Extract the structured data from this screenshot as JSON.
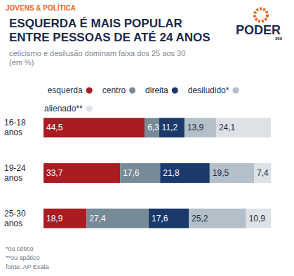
{
  "chart_data": {
    "type": "bar",
    "kicker": "JOVENS & POLÍTICA",
    "title": "ESQUERDA É MAIS POPULAR\nENTRE PESSOAS DE ATÉ 24 ANOS",
    "subtitle": "ceticismo e desilusão dominam faixa dos 25 aos 30\n(em %)",
    "logo": {
      "text": "PODER",
      "sub": "360"
    },
    "orientation": "horizontal",
    "stacked": true,
    "data_labels": true,
    "tick_labels": "y",
    "grid": false,
    "legend": "top",
    "categories": [
      "16-18 anos",
      "19-24 anos",
      "25-30 anos"
    ],
    "xlim": [
      0,
      100
    ],
    "series": [
      {
        "name": "esquerda",
        "color": "#a81c22",
        "values": [
          44.5,
          33.7,
          18.9
        ],
        "value_labels": [
          "44,5",
          "33,7",
          "18,9"
        ]
      },
      {
        "name": "centro",
        "color": "#778a98",
        "values": [
          6.3,
          17.6,
          27.4
        ],
        "value_labels": [
          "6,3",
          "17,6",
          "27,4"
        ]
      },
      {
        "name": "direita",
        "color": "#1b3a6b",
        "values": [
          11.2,
          21.8,
          17.6
        ],
        "value_labels": [
          "11,2",
          "21,8",
          "17,6"
        ]
      },
      {
        "name": "desiludido*",
        "color": "#b3bfc9",
        "values": [
          13.9,
          19.5,
          25.2
        ],
        "value_labels": [
          "13,9",
          "19,5",
          "25,2"
        ]
      },
      {
        "name": "alienado**",
        "color": "#dde2e7",
        "values": [
          24.1,
          7.4,
          10.9
        ],
        "value_labels": [
          "24,1",
          "7,4",
          "10,9"
        ]
      }
    ],
    "notes": [
      "*ou cético",
      "**ou apático",
      "fonte: AP Exata"
    ]
  }
}
